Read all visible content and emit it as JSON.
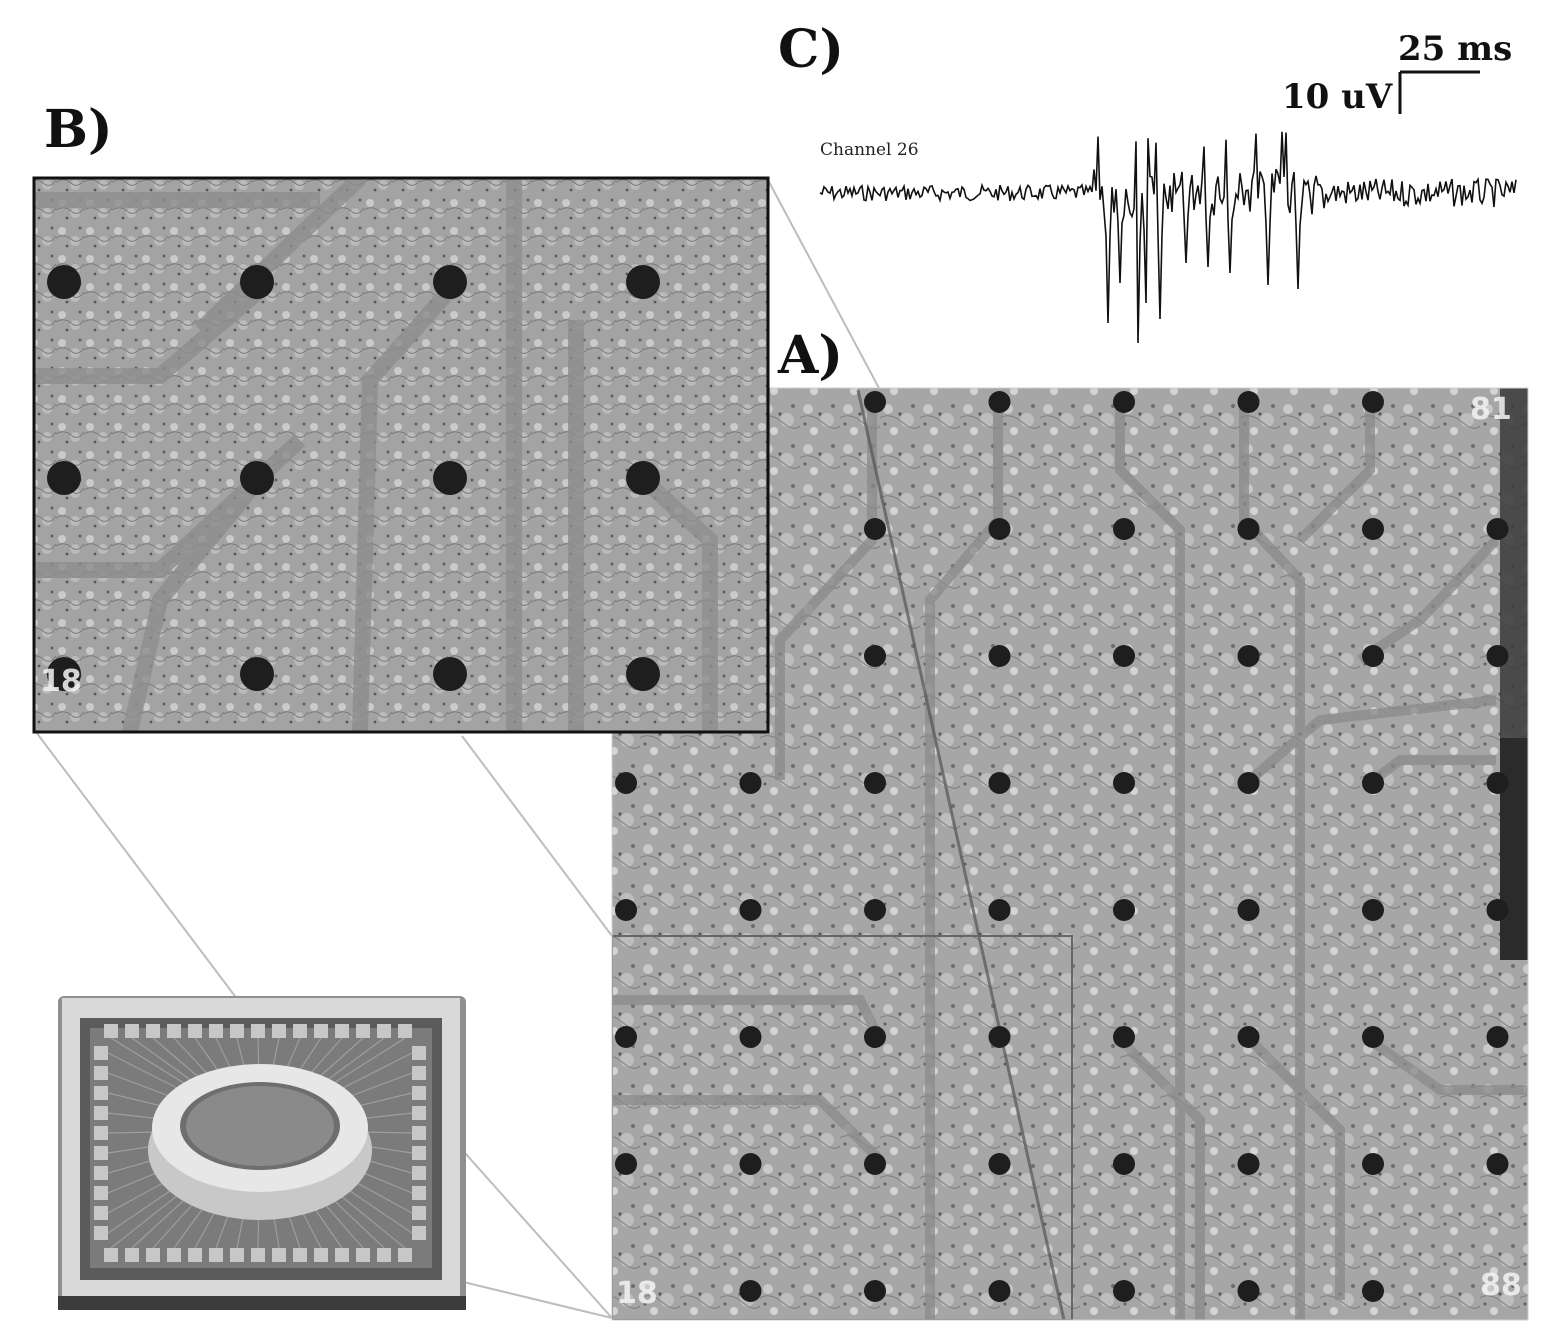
{
  "panels": {
    "a_label": "A)",
    "b_label": "B)",
    "c_label": "C)"
  },
  "scale_bar": {
    "time": "25 ms",
    "voltage": "10 uV"
  },
  "trace": {
    "channel_label": "Channel 26"
  },
  "electrode_numbers": {
    "a_top_right": "81",
    "a_bottom_left": "18",
    "a_bottom_right": "88",
    "b_bottom_left": "18"
  },
  "colors": {
    "substrate": "#a9a9a9",
    "electrode": "#1e1e1e",
    "trace": "#111111",
    "leader_lines": "#bdbdbd"
  }
}
